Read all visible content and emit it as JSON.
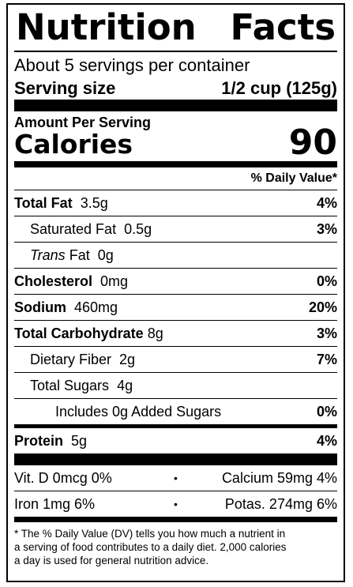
{
  "title": {
    "word1": "Nutrition",
    "word2": "Facts"
  },
  "servings_per_container": "About 5 servings per container",
  "serving_size": {
    "label": "Serving size",
    "value": "1/2 cup (125g)"
  },
  "amount_per_serving": "Amount Per Serving",
  "calories": {
    "label": "Calories",
    "value": "90"
  },
  "dv_header": "% Daily Value*",
  "nutrients": [
    {
      "name": "Total Fat",
      "amount": "3.5g",
      "dv": "4%"
    },
    {
      "name": "Saturated Fat",
      "amount": "0.5g",
      "dv": "3%"
    },
    {
      "name_italic": "Trans",
      "name": "Fat",
      "amount": "0g",
      "dv": ""
    },
    {
      "name": "Cholesterol",
      "amount": "0mg",
      "dv": "0%"
    },
    {
      "name": "Sodium",
      "amount": "460mg",
      "dv": "20%"
    },
    {
      "name": "Total Carbohydrate",
      "amount": "8g",
      "dv": "3%"
    },
    {
      "name": "Dietary Fiber",
      "amount": "2g",
      "dv": "7%"
    },
    {
      "name": "Total Sugars",
      "amount": "4g",
      "dv": ""
    },
    {
      "name": "Includes 0g Added Sugars",
      "amount": "",
      "dv": "0%"
    },
    {
      "name": "Protein",
      "amount": "5g",
      "dv": "4%"
    }
  ],
  "vitamins": [
    {
      "left": "Vit. D 0mcg 0%",
      "sep": "•",
      "right": "Calcium 59mg 4%"
    },
    {
      "left": "Iron 1mg 6%",
      "sep": "•",
      "right": "Potas. 274mg 6%"
    }
  ],
  "footnote": {
    "line1": "* The % Daily Value (DV) tells you how much a nutrient in",
    "line2": "a serving of food contributes to a daily diet. 2,000 calories",
    "line3": "a day is used for general nutrition advice."
  }
}
